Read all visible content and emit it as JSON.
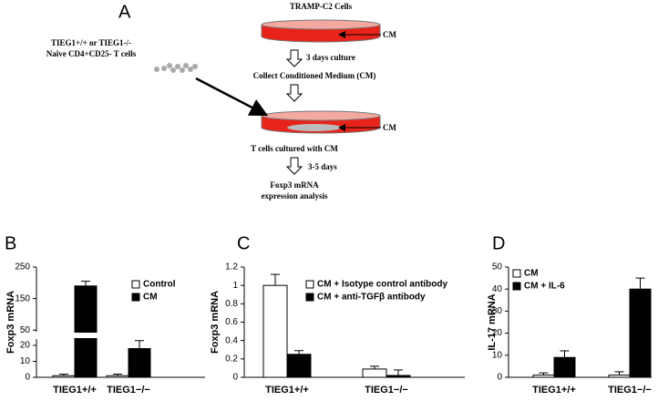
{
  "diagram": {
    "panel": "A",
    "source_title": "TRAMP-C2 Cells",
    "cm_label_1": "CM",
    "step_1": "3 days culture",
    "step_2": "Collect Conditioned Medium (CM)",
    "cells_line_1": "TIEG1+/+ or TIEG1-/-",
    "cells_line_2": "Naïve CD4+CD25- T cells",
    "cm_label_2": "CM",
    "step_3": "T cells cultured with CM",
    "step_4": "3-5 days",
    "result_line_1": "Foxp3 mRNA",
    "result_line_2": "expression analysis"
  },
  "chart_data": [
    {
      "type": "bar",
      "panel": "B",
      "y_label": "Foxp3 mRNA",
      "categories": [
        "TIEG1+/+",
        "TIEG1−/−"
      ],
      "series": [
        {
          "name": "Control",
          "color": "#ffffff",
          "values": [
            1,
            1
          ],
          "errors": [
            1,
            1
          ]
        },
        {
          "name": "CM",
          "color": "#000000",
          "values": [
            190,
            18
          ],
          "errors": [
            15,
            5
          ]
        }
      ],
      "ylim": [
        0,
        250
      ],
      "ylim_segments": [
        [
          0,
          24
        ],
        [
          45,
          250
        ]
      ],
      "yticks": [
        0,
        10,
        20,
        50,
        150,
        250
      ],
      "legend": "upper right"
    },
    {
      "type": "bar",
      "panel": "C",
      "y_label": "Foxp3 mRNA",
      "categories": [
        "TIEG1+/+",
        "TIEG1−/−"
      ],
      "series": [
        {
          "name": "CM + Isotype control antibody",
          "color": "#ffffff",
          "values": [
            1.0,
            0.09
          ],
          "errors": [
            0.12,
            0.03
          ]
        },
        {
          "name": "CM + anti-TGFβ antibody",
          "color": "#000000",
          "values": [
            0.25,
            0.02
          ],
          "errors": [
            0.04,
            0.06
          ]
        }
      ],
      "ylim": [
        0,
        1.2
      ],
      "yticks": [
        0,
        0.2,
        0.4,
        0.6,
        0.8,
        1,
        1.2
      ],
      "legend": "upper center"
    },
    {
      "type": "bar",
      "panel": "D",
      "y_label": "IL-17 mRNA",
      "categories": [
        "TIEG1+/+",
        "TIEG1−/−"
      ],
      "series": [
        {
          "name": "CM",
          "color": "#ffffff",
          "values": [
            1,
            1
          ],
          "errors": [
            1,
            1.5
          ]
        },
        {
          "name": "CM + IL-6",
          "color": "#000000",
          "values": [
            9,
            40
          ],
          "errors": [
            3,
            5
          ]
        }
      ],
      "ylim": [
        0,
        50
      ],
      "yticks": [
        0,
        10,
        20,
        30,
        40,
        50
      ],
      "legend": "upper left"
    }
  ]
}
